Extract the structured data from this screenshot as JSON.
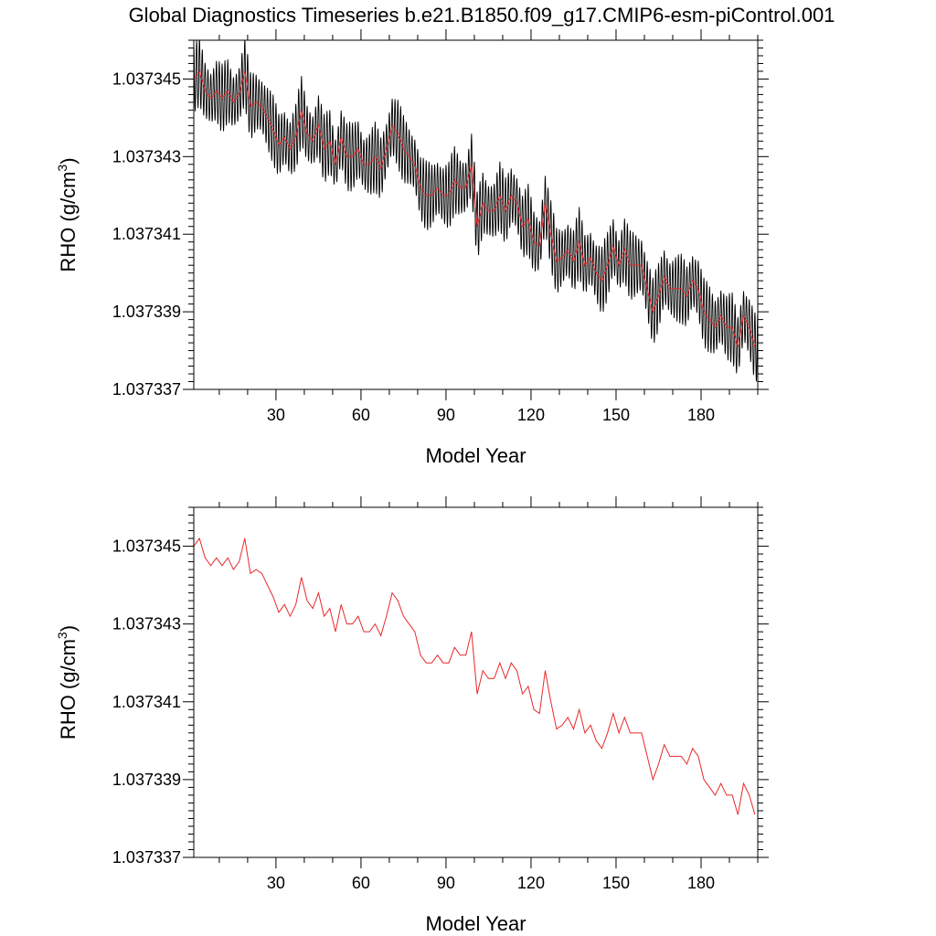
{
  "figure": {
    "title": "Global Diagnostics Timeseries b.e21.B1850.f09_g17.CMIP6-esm-piControl.001"
  },
  "colors": {
    "monthly": "#000000",
    "annual": "#e8282a",
    "axis": "#000000"
  },
  "chart_data": [
    {
      "type": "line",
      "name": "monthly-and-annual",
      "xlabel": "Model Year",
      "ylabel": "RHO (g/cm3)",
      "ylabel_main": "RHO (g/cm",
      "ylabel_sup": "3",
      "ylabel_close": ")",
      "xlim": [
        1,
        200
      ],
      "ylim": [
        1.037337,
        1.037346
      ],
      "x_ticks": [
        30,
        60,
        90,
        120,
        150,
        180
      ],
      "x_tick_labels": [
        "30",
        "60",
        "90",
        "120",
        "150",
        "180"
      ],
      "y_ticks": [
        1.037337,
        1.037339,
        1.037341,
        1.037343,
        1.037345
      ],
      "y_tick_labels": [
        "1.037337",
        "1.037339",
        "1.037341",
        "1.037343",
        "1.037345"
      ],
      "series": [
        {
          "name": "monthly",
          "style": "seasonal-cycle",
          "seasonal_amplitude": 9e-07,
          "base": "annual"
        },
        {
          "name": "annual",
          "ref": "annual_values"
        }
      ]
    },
    {
      "type": "line",
      "name": "annual-only",
      "xlabel": "Model Year",
      "ylabel": "RHO (g/cm3)",
      "ylabel_main": "RHO (g/cm",
      "ylabel_sup": "3",
      "ylabel_close": ")",
      "xlim": [
        1,
        200
      ],
      "ylim": [
        1.037337,
        1.037346
      ],
      "x_ticks": [
        30,
        60,
        90,
        120,
        150,
        180
      ],
      "x_tick_labels": [
        "30",
        "60",
        "90",
        "120",
        "150",
        "180"
      ],
      "y_ticks": [
        1.037337,
        1.037339,
        1.037341,
        1.037343,
        1.037345
      ],
      "y_tick_labels": [
        "1.037337",
        "1.037339",
        "1.037341",
        "1.037343",
        "1.037345"
      ],
      "series": [
        {
          "name": "annual",
          "ref": "annual_values"
        }
      ]
    }
  ],
  "annual_values": {
    "x": [
      1,
      3,
      5,
      7,
      9,
      11,
      13,
      15,
      17,
      19,
      21,
      23,
      25,
      27,
      29,
      31,
      33,
      35,
      37,
      39,
      41,
      43,
      45,
      47,
      49,
      51,
      53,
      55,
      57,
      59,
      61,
      63,
      65,
      67,
      69,
      71,
      73,
      75,
      77,
      79,
      81,
      83,
      85,
      87,
      89,
      91,
      93,
      95,
      97,
      99,
      101,
      103,
      105,
      107,
      109,
      111,
      113,
      115,
      117,
      119,
      121,
      123,
      125,
      127,
      129,
      131,
      133,
      135,
      137,
      139,
      141,
      143,
      145,
      147,
      149,
      151,
      153,
      155,
      157,
      159,
      161,
      163,
      165,
      167,
      169,
      171,
      173,
      175,
      177,
      179,
      181,
      183,
      185,
      187,
      189,
      191,
      193,
      195,
      197,
      199
    ],
    "y": [
      1.037345,
      1.0373452,
      1.0373447,
      1.0373445,
      1.0373447,
      1.0373445,
      1.0373447,
      1.0373444,
      1.0373446,
      1.0373452,
      1.0373443,
      1.0373444,
      1.0373443,
      1.037344,
      1.0373437,
      1.0373433,
      1.0373435,
      1.0373432,
      1.0373435,
      1.0373442,
      1.0373436,
      1.0373434,
      1.0373438,
      1.0373432,
      1.0373434,
      1.0373428,
      1.0373435,
      1.037343,
      1.037343,
      1.0373432,
      1.0373428,
      1.0373428,
      1.037343,
      1.0373427,
      1.0373432,
      1.0373438,
      1.0373436,
      1.0373432,
      1.037343,
      1.0373428,
      1.0373422,
      1.037342,
      1.037342,
      1.0373422,
      1.037342,
      1.037342,
      1.0373424,
      1.0373422,
      1.0373422,
      1.0373428,
      1.0373412,
      1.0373418,
      1.0373416,
      1.0373416,
      1.037342,
      1.0373416,
      1.037342,
      1.0373418,
      1.0373412,
      1.0373414,
      1.0373408,
      1.0373407,
      1.0373418,
      1.037341,
      1.0373403,
      1.0373404,
      1.0373406,
      1.0373403,
      1.0373408,
      1.0373402,
      1.0373404,
      1.03734,
      1.0373398,
      1.0373402,
      1.0373407,
      1.0373402,
      1.0373406,
      1.0373402,
      1.0373402,
      1.0373402,
      1.0373396,
      1.037339,
      1.0373394,
      1.0373399,
      1.0373396,
      1.0373396,
      1.0373396,
      1.0373394,
      1.0373398,
      1.0373396,
      1.037339,
      1.0373388,
      1.0373386,
      1.0373389,
      1.0373386,
      1.0373386,
      1.0373381,
      1.0373389,
      1.0373386,
      1.0373381
    ]
  }
}
